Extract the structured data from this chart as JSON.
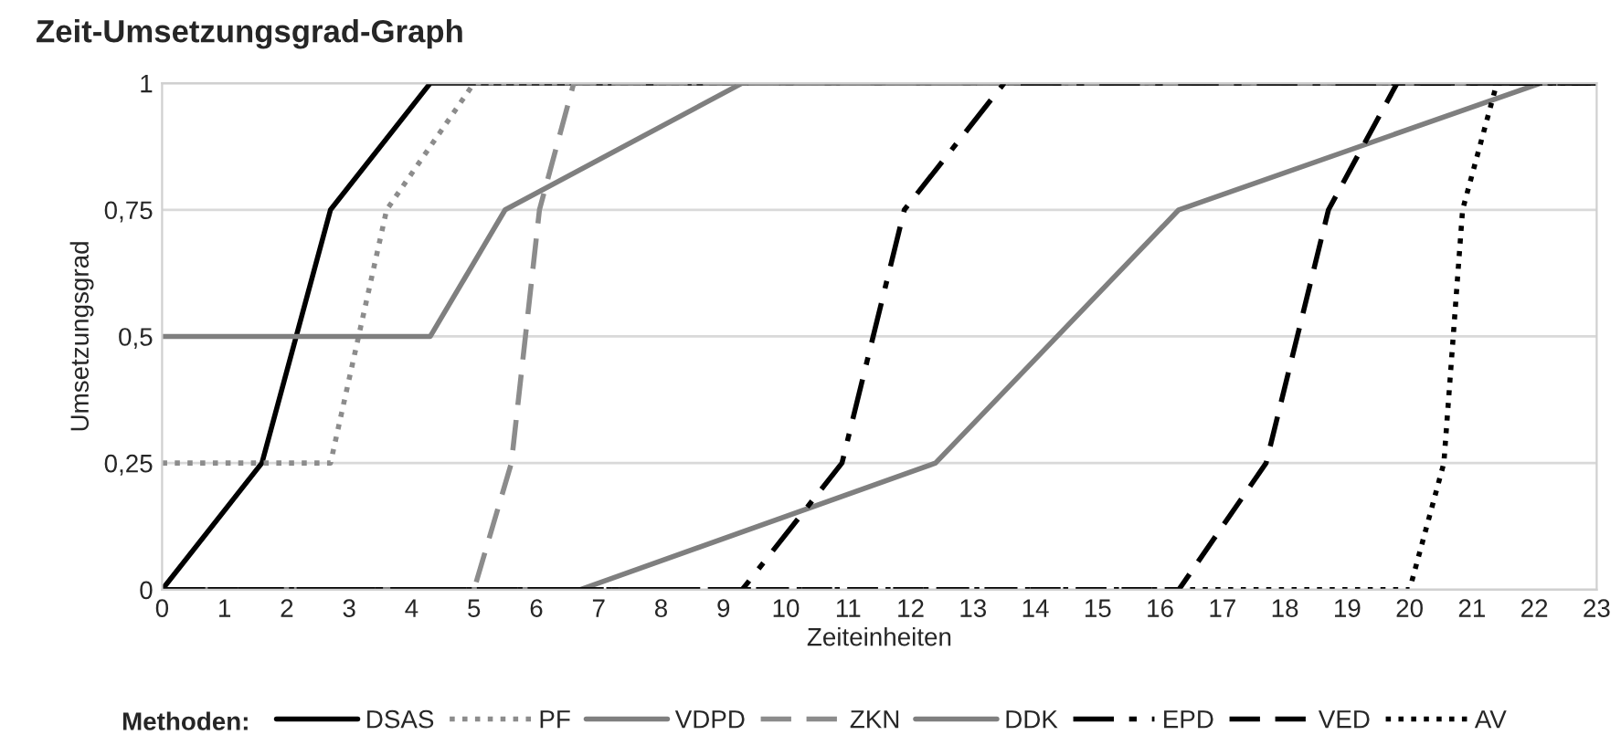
{
  "chart_data": {
    "type": "line",
    "title": "Zeit-Umsetzungsgrad-Graph",
    "xlabel": "Zeiteinheiten",
    "ylabel": "Umsetzungsgrad",
    "legend_title": "Methoden:",
    "xlim": [
      0,
      23
    ],
    "xticks": [
      0,
      1,
      2,
      3,
      4,
      5,
      6,
      7,
      8,
      9,
      10,
      11,
      12,
      13,
      14,
      15,
      16,
      17,
      18,
      19,
      20,
      21,
      22,
      23
    ],
    "ylim": [
      0,
      1
    ],
    "yticks": [
      0,
      {
        "value": 0.25,
        "label": "0,25"
      },
      {
        "value": 0.5,
        "label": "0,5"
      },
      {
        "value": 0.75,
        "label": "0,75"
      },
      1
    ],
    "grid": "y",
    "legend": "bottom",
    "marker": "none",
    "series": [
      {
        "name": "DSAS",
        "color": "#000000",
        "line_style": "solid",
        "x": [
          0,
          1.6,
          2.7,
          4.3,
          23
        ],
        "values": [
          0,
          0.25,
          0.75,
          1,
          1
        ]
      },
      {
        "name": "PF",
        "color": "#8c8c8c",
        "line_style": "dotted",
        "x": [
          0,
          2.7,
          3.6,
          5.0,
          23
        ],
        "values": [
          0.25,
          0.25,
          0.75,
          1,
          1
        ]
      },
      {
        "name": "VDPD",
        "color": "#7f7f7f",
        "line_style": "solid",
        "x": [
          0,
          4.3,
          5.5,
          9.3,
          23
        ],
        "values": [
          0.5,
          0.5,
          0.75,
          1,
          1
        ]
      },
      {
        "name": "ZKN",
        "color": "#8c8c8c",
        "line_style": "dashed",
        "x": [
          0,
          5.0,
          5.6,
          6.05,
          6.6,
          23
        ],
        "values": [
          0,
          0,
          0.25,
          0.75,
          1,
          1
        ]
      },
      {
        "name": "DDK",
        "color": "#7f7f7f",
        "line_style": "solid",
        "x": [
          0,
          6.7,
          12.4,
          16.3,
          22.1,
          23
        ],
        "values": [
          0,
          0,
          0.25,
          0.75,
          1,
          1
        ]
      },
      {
        "name": "EPD",
        "color": "#000000",
        "line_style": "dashdot",
        "x": [
          0,
          9.3,
          10.9,
          11.9,
          13.5,
          23
        ],
        "values": [
          0,
          0,
          0.25,
          0.75,
          1,
          1
        ]
      },
      {
        "name": "VED",
        "color": "#000000",
        "line_style": "dashed",
        "x": [
          0,
          16.3,
          17.7,
          18.7,
          19.8,
          23
        ],
        "values": [
          0,
          0,
          0.25,
          0.75,
          1,
          1
        ]
      },
      {
        "name": "AV",
        "color": "#000000",
        "line_style": "dotted",
        "x": [
          0,
          20.0,
          20.55,
          20.85,
          21.4,
          23
        ],
        "values": [
          0,
          0,
          0.25,
          0.75,
          1,
          1
        ]
      }
    ]
  }
}
